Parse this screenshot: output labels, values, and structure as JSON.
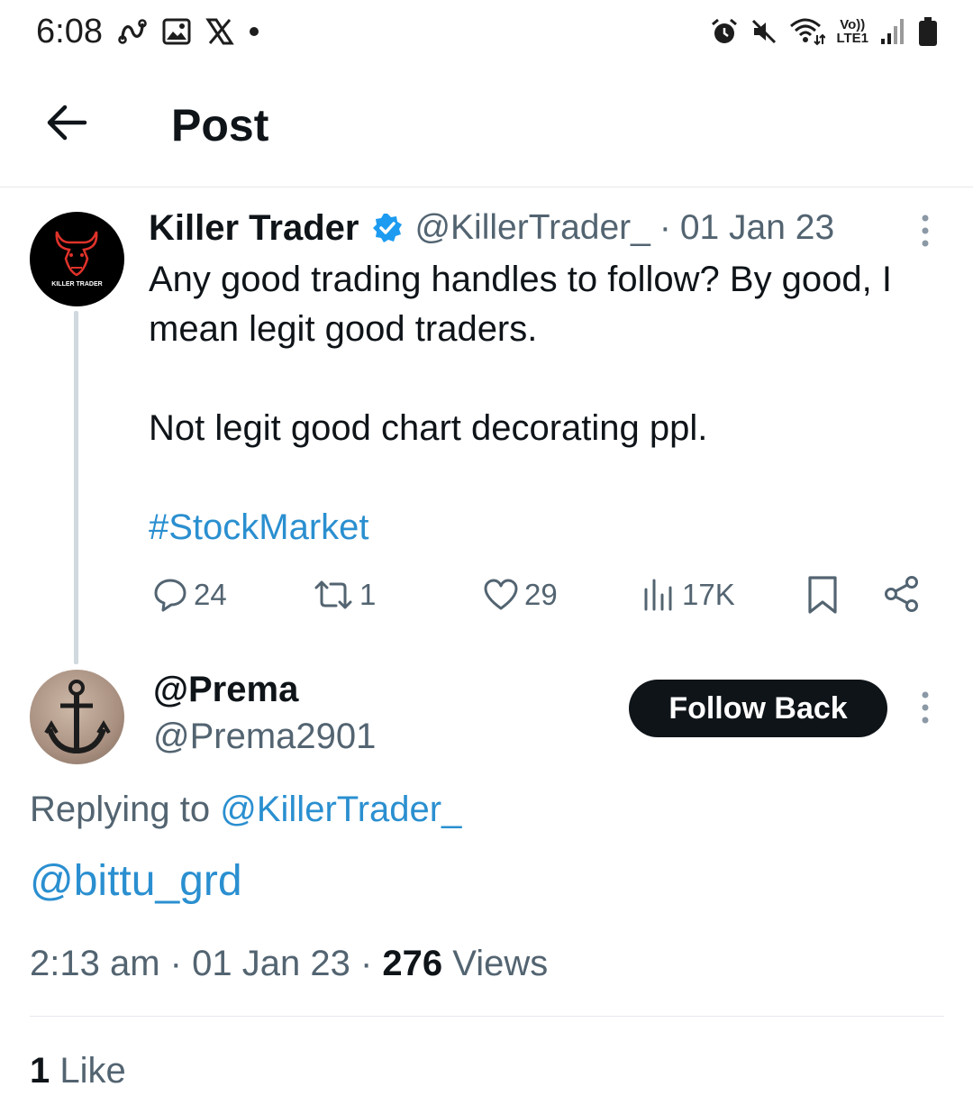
{
  "status_bar": {
    "time": "6:08",
    "network_top": "Vo))",
    "network_bottom": "LTE1"
  },
  "header": {
    "title": "Post"
  },
  "original_tweet": {
    "author_name": "Killer Trader",
    "handle": "@KillerTrader_",
    "separator": "·",
    "date": "01 Jan 23",
    "avatar_label": "KILLER TRADER",
    "text_line1": "Any good trading handles to follow? By good, I",
    "text_line2": "mean legit good traders.",
    "text_line3": "Not legit good chart decorating ppl.",
    "hashtag": "#StockMarket",
    "replies": "24",
    "reposts": "1",
    "likes": "29",
    "views": "17K"
  },
  "reply": {
    "author_name": "@Prema",
    "handle": "@Prema2901",
    "follow_label": "Follow Back",
    "replying_prefix": "Replying to",
    "replying_to": "@KillerTrader_",
    "body": "@bittu_grd",
    "time": "2:13 am",
    "date": "01 Jan 23",
    "sep": "·",
    "views_count": "276",
    "views_label": "Views",
    "like_count": "1",
    "like_label": "Like"
  },
  "colors": {
    "link": "#2a8fd0",
    "verified": "#1d9bf0",
    "secondary_text": "#536471",
    "avatar_accent": "#e0322a"
  },
  "icons": [
    "back-arrow-icon",
    "verified-badge-icon",
    "more-icon",
    "reply-icon",
    "repost-icon",
    "like-icon",
    "views-icon",
    "bookmark-icon",
    "share-icon",
    "alarm-icon",
    "mute-icon",
    "wifi-icon",
    "signal-icon",
    "battery-icon",
    "link-icon",
    "image-icon",
    "x-logo-icon"
  ]
}
